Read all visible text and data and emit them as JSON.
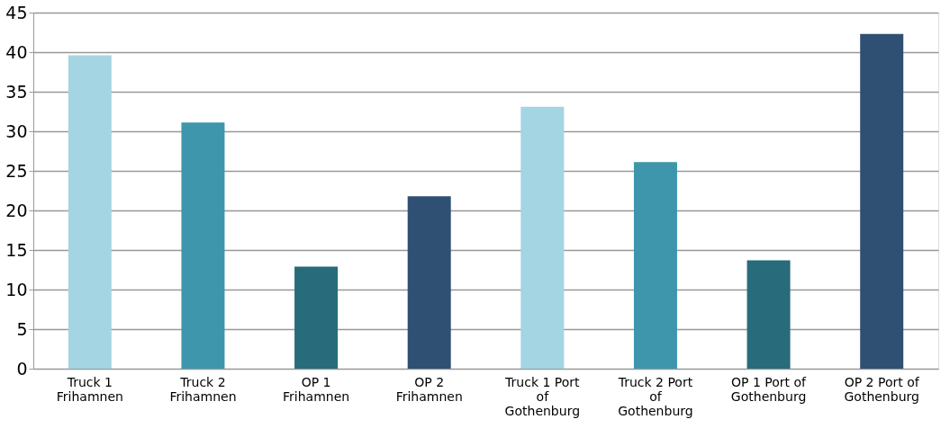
{
  "chart_data": {
    "type": "bar",
    "categories": [
      "Truck 1 Frihamnen",
      "Truck 2 Frihamnen",
      "OP 1 Frihamnen",
      "OP 2 Frihamnen",
      "Truck 1 Port of Gothenburg",
      "Truck 2 Port of Gothenburg",
      "OP 1 Port of Gothenburg",
      "OP 2 Port of Gothenburg"
    ],
    "values": [
      39.6,
      31.1,
      12.9,
      21.8,
      33.1,
      26.1,
      13.7,
      42.3
    ],
    "colors": [
      "#a3d5e3",
      "#3d96ac",
      "#286b7a",
      "#2f5072",
      "#a3d5e3",
      "#3d96ac",
      "#286b7a",
      "#2f5072"
    ],
    "ylim": [
      0,
      45
    ],
    "yticks": [
      0,
      5,
      10,
      15,
      20,
      25,
      30,
      35,
      40,
      45
    ],
    "grid": "y"
  }
}
